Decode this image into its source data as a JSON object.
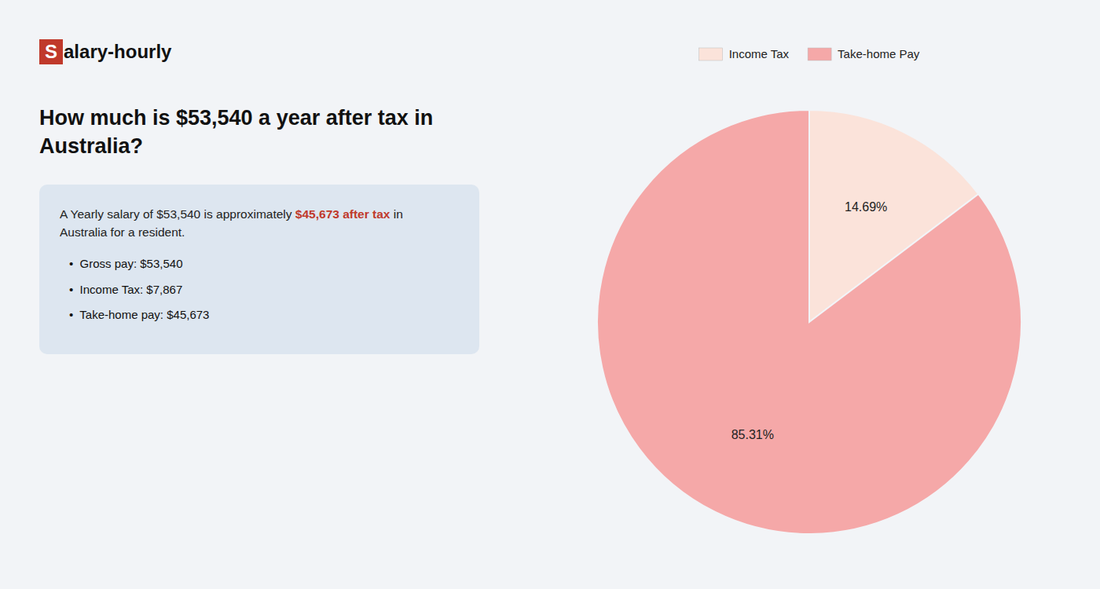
{
  "chart_data": {
    "type": "pie",
    "title": "How much is $53,540 a year after tax in Australia?",
    "annotations": [
      "S",
      "alary-hourly",
      "A Yearly salary of $53,540 is approximately ",
      "$45,673 after tax",
      " in",
      "Australia for a resident.",
      "•  Gross pay: $53,540",
      "•  Income Tax: $7,867",
      "•  Take-home pay: $45,673"
    ],
    "categories": [
      "Income Tax",
      "Take-home Pay"
    ],
    "values": [
      14.69,
      85.31
    ],
    "value_labels": [
      "14.69%",
      "85.31%"
    ],
    "colors": [
      "#fbe3da",
      "#f5a8a8"
    ],
    "data_labels": true,
    "legend": "top"
  }
}
